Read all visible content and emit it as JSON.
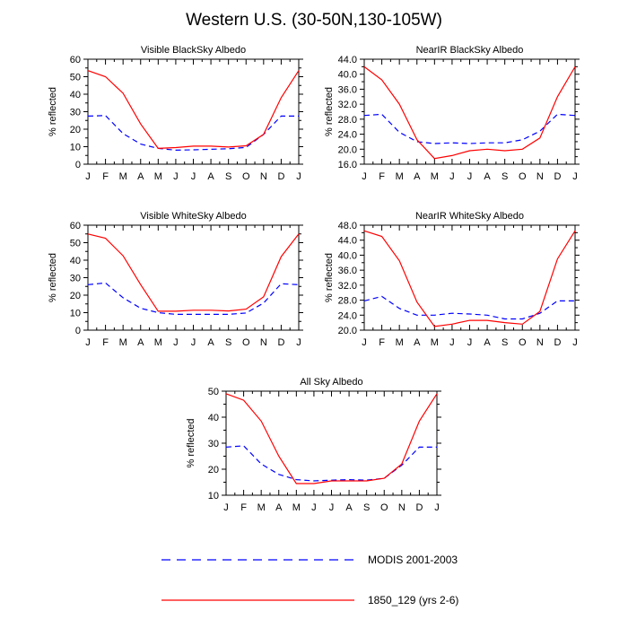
{
  "page_title": "Western U.S. (30-50N,130-105W)",
  "colors": {
    "modis": "#0000ff",
    "model": "#ff0000",
    "axis": "#000000"
  },
  "legend": {
    "items": [
      {
        "label": "MODIS 2001-2003",
        "style": "dashed",
        "color": "#0000ff"
      },
      {
        "label": "1850_129 (yrs 2-6)",
        "style": "solid",
        "color": "#ff0000"
      }
    ]
  },
  "chart_data": [
    {
      "type": "line",
      "title": "Visible BlackSky Albedo",
      "ylabel": "% reflected",
      "xlabel": "",
      "categories": [
        "J",
        "F",
        "M",
        "A",
        "M",
        "J",
        "J",
        "A",
        "S",
        "O",
        "N",
        "D",
        "J"
      ],
      "ylim": [
        0,
        60
      ],
      "yticks": [
        0,
        10,
        20,
        30,
        40,
        50,
        60
      ],
      "ytick_labels": [
        "0",
        "10",
        "20",
        "30",
        "40",
        "50",
        "60"
      ],
      "series": [
        {
          "name": "MODIS 2001-2003",
          "values": [
            27.5,
            27.8,
            17.5,
            11.5,
            9.0,
            8.0,
            8.2,
            8.5,
            8.8,
            9.6,
            17.0,
            27.5,
            27.5
          ]
        },
        {
          "name": "1850_129 (yrs 2-6)",
          "values": [
            53.5,
            50.0,
            40.5,
            23.0,
            9.0,
            9.5,
            10.3,
            10.3,
            9.8,
            10.5,
            17.0,
            38.0,
            53.5
          ]
        }
      ]
    },
    {
      "type": "line",
      "title": "NearIR BlackSky Albedo",
      "ylabel": "% reflected",
      "xlabel": "",
      "categories": [
        "J",
        "F",
        "M",
        "A",
        "M",
        "J",
        "J",
        "A",
        "S",
        "O",
        "N",
        "D",
        "J"
      ],
      "ylim": [
        16,
        44
      ],
      "yticks": [
        16,
        20,
        24,
        28,
        32,
        36,
        40,
        44
      ],
      "ytick_labels": [
        "16.0",
        "20.0",
        "24.0",
        "28.0",
        "32.0",
        "36.0",
        "40.0",
        "44.0"
      ],
      "series": [
        {
          "name": "MODIS 2001-2003",
          "values": [
            29.0,
            29.3,
            24.5,
            22.0,
            21.5,
            21.7,
            21.5,
            21.7,
            21.7,
            22.5,
            24.8,
            29.3,
            29.0
          ]
        },
        {
          "name": "1850_129 (yrs 2-6)",
          "values": [
            42.0,
            38.5,
            32.0,
            22.5,
            17.5,
            18.3,
            19.6,
            20.0,
            19.6,
            20.0,
            23.0,
            34.0,
            42.0
          ]
        }
      ]
    },
    {
      "type": "line",
      "title": "Visible WhiteSky Albedo",
      "ylabel": "% reflected",
      "xlabel": "",
      "categories": [
        "J",
        "F",
        "M",
        "A",
        "M",
        "J",
        "J",
        "A",
        "S",
        "O",
        "N",
        "D",
        "J"
      ],
      "ylim": [
        0,
        60
      ],
      "yticks": [
        0,
        10,
        20,
        30,
        40,
        50,
        60
      ],
      "ytick_labels": [
        "0",
        "10",
        "20",
        "30",
        "40",
        "50",
        "60"
      ],
      "series": [
        {
          "name": "MODIS 2001-2003",
          "values": [
            26.0,
            27.0,
            18.5,
            12.5,
            10.0,
            9.0,
            9.0,
            9.0,
            9.0,
            9.8,
            15.5,
            26.5,
            26.0
          ]
        },
        {
          "name": "1850_129 (yrs 2-6)",
          "values": [
            55.0,
            52.5,
            42.5,
            26.0,
            10.8,
            10.8,
            11.4,
            11.4,
            11.0,
            12.0,
            19.0,
            42.0,
            55.0
          ]
        }
      ]
    },
    {
      "type": "line",
      "title": "NearIR WhiteSky Albedo",
      "ylabel": "% reflected",
      "xlabel": "",
      "categories": [
        "J",
        "F",
        "M",
        "A",
        "M",
        "J",
        "J",
        "A",
        "S",
        "O",
        "N",
        "D",
        "J"
      ],
      "ylim": [
        20,
        48
      ],
      "yticks": [
        20,
        24,
        28,
        32,
        36,
        40,
        44,
        48
      ],
      "ytick_labels": [
        "20.0",
        "24.0",
        "28.0",
        "32.0",
        "36.0",
        "40.0",
        "44.0",
        "48.0"
      ],
      "series": [
        {
          "name": "MODIS 2001-2003",
          "values": [
            27.8,
            29.0,
            25.8,
            24.0,
            24.0,
            24.5,
            24.3,
            24.0,
            23.0,
            23.0,
            24.5,
            27.8,
            27.8
          ]
        },
        {
          "name": "1850_129 (yrs 2-6)",
          "values": [
            46.5,
            45.0,
            38.5,
            27.5,
            21.0,
            21.6,
            22.6,
            22.6,
            22.0,
            21.6,
            25.0,
            39.0,
            46.5
          ]
        }
      ]
    },
    {
      "type": "line",
      "title": "All Sky Albedo",
      "ylabel": "% reflected",
      "xlabel": "",
      "categories": [
        "J",
        "F",
        "M",
        "A",
        "M",
        "J",
        "J",
        "A",
        "S",
        "O",
        "N",
        "D",
        "J"
      ],
      "ylim": [
        10,
        50
      ],
      "yticks": [
        10,
        20,
        30,
        40,
        50
      ],
      "ytick_labels": [
        "10",
        "20",
        "30",
        "40",
        "50"
      ],
      "series": [
        {
          "name": "MODIS 2001-2003",
          "values": [
            28.5,
            29.0,
            22.0,
            18.0,
            16.0,
            15.5,
            15.8,
            16.0,
            15.8,
            16.5,
            21.5,
            28.5,
            28.5
          ]
        },
        {
          "name": "1850_129 (yrs 2-6)",
          "values": [
            49.0,
            46.5,
            38.5,
            25.0,
            14.5,
            14.5,
            15.5,
            15.5,
            15.5,
            16.5,
            22.0,
            38.5,
            49.0
          ]
        }
      ]
    }
  ]
}
